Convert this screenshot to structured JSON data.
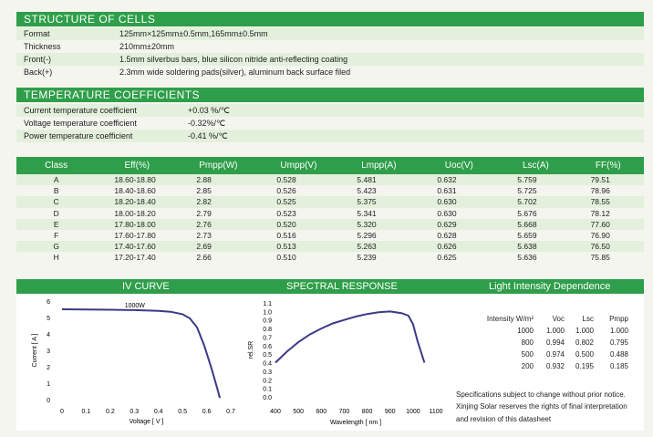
{
  "structure": {
    "title": "STRUCTURE OF CELLS",
    "rows": [
      {
        "key": "Format",
        "value": "125mm×125mm±0.5mm,165mm±0.5mm"
      },
      {
        "key": "Thickness",
        "value": "210mm±20mm"
      },
      {
        "key": "Front(-)",
        "value": "1.5mm silverbus bars, blue silicon nitride anti-reflecting coating"
      },
      {
        "key": "Back(+)",
        "value": "2.3mm wide soldering pads(silver), aluminum back surface filed"
      }
    ]
  },
  "temperature": {
    "title": "TEMPERATURE COEFFICIENTS",
    "rows": [
      {
        "key": "Current temperature coefficient",
        "value": "+0.03 %/℃"
      },
      {
        "key": "Voltage temperature coefficient",
        "value": "-0.32%/℃"
      },
      {
        "key": "Power temperature coefficient",
        "value": "-0.41 %/℃"
      }
    ]
  },
  "classes": {
    "headers": [
      "Class",
      "Eff(%)",
      "Pmpp(W)",
      "Umpp(V)",
      "Lmpp(A)",
      "Uoc(V)",
      "Lsc(A)",
      "FF(%)"
    ],
    "rows": [
      [
        "A",
        "18.60-18.80",
        "2.88",
        "0.528",
        "5.481",
        "0.632",
        "5.759",
        "79.51"
      ],
      [
        "B",
        "18.40-18.60",
        "2.85",
        "0.526",
        "5.423",
        "0.631",
        "5.725",
        "78.96"
      ],
      [
        "C",
        "18.20-18.40",
        "2.82",
        "0.525",
        "5.375",
        "0.630",
        "5.702",
        "78.55"
      ],
      [
        "D",
        "18.00-18.20",
        "2.79",
        "0.523",
        "5.341",
        "0.630",
        "5.676",
        "78.12"
      ],
      [
        "E",
        "17.80-18.00",
        "2.76",
        "0.520",
        "5.320",
        "0.629",
        "5.668",
        "77.60"
      ],
      [
        "F",
        "17.60-17.80",
        "2.73",
        "0.516",
        "5.296",
        "0.628",
        "5.659",
        "76.90"
      ],
      [
        "G",
        "17.40-17.60",
        "2.69",
        "0.513",
        "5.263",
        "0.626",
        "5.638",
        "76.50"
      ],
      [
        "H",
        "17.20-17.40",
        "2.66",
        "0.510",
        "5.239",
        "0.625",
        "5.636",
        "75.85"
      ]
    ]
  },
  "iv_curve": {
    "title": "IV CURVE",
    "curve_label": "1000W",
    "xlabel": "Voltage [ V ]",
    "ylabel": "Current [ A ]",
    "x_ticks": [
      "0",
      "0.1",
      "0.2",
      "0.3",
      "0.4",
      "0.5",
      "0.6",
      "0.7"
    ],
    "y_ticks": [
      "0",
      "1",
      "2",
      "3",
      "4",
      "5",
      "6"
    ],
    "color": "#3a3a86"
  },
  "spectral": {
    "title": "SPECTRAL RESPONSE",
    "xlabel": "Wavelength [ nm ]",
    "ylabel": "rel.SR",
    "x_ticks": [
      "400",
      "500",
      "600",
      "700",
      "800",
      "900",
      "1000",
      "1100"
    ],
    "y_ticks": [
      "0.0",
      "0.1",
      "0.2",
      "0.3",
      "0.4",
      "0.5",
      "0.6",
      "0.7",
      "0.8",
      "0.9",
      "1.0",
      "1.1"
    ],
    "color": "#3a3a86"
  },
  "light_intensity": {
    "title": "Light Intensity Dependence",
    "headers": [
      "Intensity W/m²",
      "Voc",
      "Lsc",
      "Pmpp"
    ],
    "rows": [
      [
        "1000",
        "1.000",
        "1.000",
        "1.000"
      ],
      [
        "800",
        "0.994",
        "0.802",
        "0.795"
      ],
      [
        "500",
        "0.974",
        "0.500",
        "0.488"
      ],
      [
        "200",
        "0.932",
        "0.195",
        "0.185"
      ]
    ]
  },
  "notes": [
    "Specifications subject to change without prior notice.",
    "Xinjing Solar reserves the rights of final interpretation",
    "and revision of this datasheet"
  ],
  "chart_data": [
    {
      "type": "line",
      "title": "IV CURVE",
      "xlabel": "Voltage [ V ]",
      "ylabel": "Current [ A ]",
      "xlim": [
        0,
        0.7
      ],
      "ylim": [
        0,
        6
      ],
      "series": [
        {
          "name": "1000W",
          "x": [
            0,
            0.1,
            0.2,
            0.3,
            0.4,
            0.45,
            0.5,
            0.53,
            0.56,
            0.59,
            0.62,
            0.64,
            0.655
          ],
          "y": [
            5.5,
            5.49,
            5.47,
            5.45,
            5.4,
            5.35,
            5.2,
            4.95,
            4.4,
            3.3,
            1.9,
            0.9,
            0.1
          ]
        }
      ]
    },
    {
      "type": "line",
      "title": "SPECTRAL RESPONSE",
      "xlabel": "Wavelength [ nm ]",
      "ylabel": "rel.SR",
      "xlim": [
        400,
        1100
      ],
      "ylim": [
        0,
        1.1
      ],
      "series": [
        {
          "x": [
            400,
            450,
            500,
            550,
            600,
            650,
            700,
            750,
            800,
            850,
            900,
            950,
            980,
            1000,
            1020,
            1050
          ],
          "y": [
            0.4,
            0.53,
            0.64,
            0.73,
            0.8,
            0.86,
            0.9,
            0.94,
            0.97,
            0.99,
            1.0,
            0.98,
            0.95,
            0.85,
            0.65,
            0.4
          ]
        }
      ]
    }
  ]
}
